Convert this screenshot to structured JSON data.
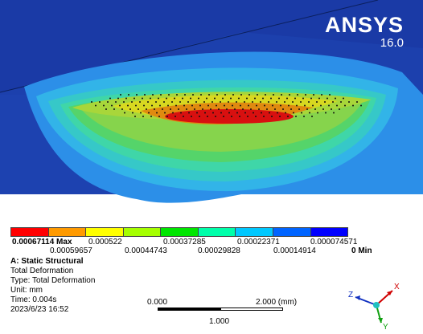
{
  "logo": {
    "brand": "ANSYS",
    "version": "16.0"
  },
  "legend": {
    "colors": [
      "#ff0000",
      "#ff9a00",
      "#ffff00",
      "#a6ff00",
      "#00e600",
      "#00ffaa",
      "#00c8ff",
      "#0064ff",
      "#0000ff"
    ],
    "top_labels": {
      "max": "0.00067114 Max",
      "v2": "0.000522",
      "v4": "0.00037285",
      "v6": "0.00022371",
      "v8": "0.000074571"
    },
    "bottom_labels": {
      "v1": "0.00059657",
      "v3": "0.00044743",
      "v5": "0.00029828",
      "v7": "0.00014914",
      "min": "0 Min"
    }
  },
  "info": {
    "title": "A: Static Structural",
    "result": "Total Deformation",
    "type": "Type: Total Deformation",
    "unit": "Unit: mm",
    "time": "Time: 0.004s",
    "date": "2023/6/23 16:52"
  },
  "scale": {
    "left": "0.000",
    "right": "2.000 (mm)",
    "mid": "1.000"
  },
  "triad": {
    "x": "X",
    "y": "Y",
    "z": "Z"
  }
}
